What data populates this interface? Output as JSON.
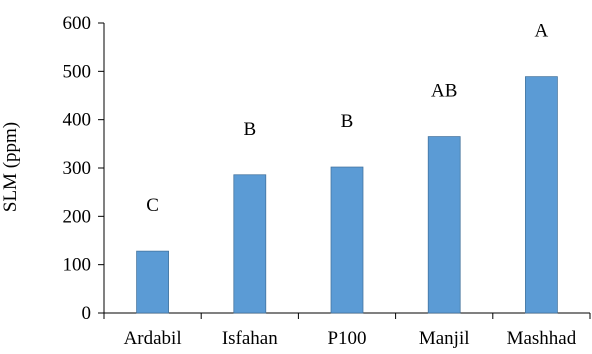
{
  "chart_data": {
    "type": "bar",
    "title": "",
    "xlabel": "",
    "ylabel": "SLM (ppm)",
    "ylim": [
      0,
      600
    ],
    "yticks": [
      0,
      100,
      200,
      300,
      400,
      500,
      600
    ],
    "grid": false,
    "legend": "none",
    "categories": [
      "Ardabil",
      "Isfahan",
      "P100",
      "Manjil",
      "Mashhad"
    ],
    "series": [
      {
        "values": [
          128,
          286,
          302,
          365,
          489
        ],
        "color": "#5B9BD5",
        "significance_labels": [
          "C",
          "B",
          "B",
          "AB",
          "A"
        ]
      }
    ]
  }
}
